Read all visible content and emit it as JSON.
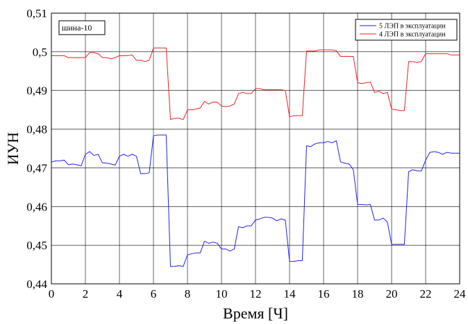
{
  "chart_data": {
    "type": "line",
    "xlabel": "Время [Ч]",
    "ylabel": "ИУН",
    "xlim": [
      0,
      24
    ],
    "ylim": [
      0.44,
      0.51
    ],
    "x_ticks": [
      "0",
      "2",
      "4",
      "6",
      "8",
      "10",
      "12",
      "14",
      "16",
      "18",
      "20",
      "22",
      "24"
    ],
    "y_ticks": [
      "0,44",
      "0,45",
      "0,46",
      "0,47",
      "0,48",
      "0,49",
      "0,5",
      "0,51"
    ],
    "grid": true,
    "legend_position": "top-right",
    "annotation": "шина-10",
    "series": [
      {
        "name": "5 ЛЭП в эксплуатации",
        "color": "#2020ee",
        "x": [
          0,
          0.25,
          0.5,
          0.75,
          1,
          1.25,
          1.5,
          1.75,
          2,
          2.25,
          2.5,
          2.75,
          3,
          3.25,
          3.5,
          3.75,
          4,
          4.25,
          4.5,
          4.75,
          5,
          5.25,
          5.5,
          5.75,
          6,
          6.25,
          6.5,
          6.75,
          7,
          7.25,
          7.5,
          7.75,
          8,
          8.25,
          8.5,
          8.75,
          9,
          9.25,
          9.5,
          9.75,
          10,
          10.25,
          10.5,
          10.75,
          11,
          11.25,
          11.5,
          11.75,
          12,
          12.25,
          12.5,
          12.75,
          13,
          13.25,
          13.5,
          13.75,
          14,
          14.25,
          14.5,
          14.75,
          15,
          15.25,
          15.5,
          15.75,
          16,
          16.25,
          16.5,
          16.75,
          17,
          17.25,
          17.5,
          17.75,
          18,
          18.25,
          18.5,
          18.75,
          19,
          19.25,
          19.5,
          19.75,
          20,
          20.25,
          20.5,
          20.75,
          21,
          21.25,
          21.5,
          21.75,
          22,
          22.25,
          22.5,
          22.75,
          23,
          23.25,
          23.5,
          23.75,
          24
        ],
        "values": [
          0.4715,
          0.4718,
          0.4718,
          0.472,
          0.4708,
          0.471,
          0.4708,
          0.4705,
          0.4735,
          0.4742,
          0.4732,
          0.4735,
          0.4713,
          0.4712,
          0.471,
          0.4707,
          0.473,
          0.4735,
          0.473,
          0.4735,
          0.473,
          0.4685,
          0.4685,
          0.4687,
          0.4783,
          0.4785,
          0.4785,
          0.4785,
          0.4445,
          0.4445,
          0.4447,
          0.4445,
          0.4475,
          0.4478,
          0.448,
          0.448,
          0.451,
          0.4505,
          0.4508,
          0.4505,
          0.449,
          0.449,
          0.4485,
          0.449,
          0.4548,
          0.4545,
          0.455,
          0.455,
          0.4565,
          0.4568,
          0.4572,
          0.4572,
          0.457,
          0.4563,
          0.4568,
          0.4565,
          0.4458,
          0.4458,
          0.446,
          0.446,
          0.4757,
          0.4755,
          0.4762,
          0.4765,
          0.4765,
          0.4768,
          0.4765,
          0.477,
          0.4715,
          0.4712,
          0.471,
          0.4695,
          0.4605,
          0.4605,
          0.4604,
          0.4605,
          0.4565,
          0.4565,
          0.457,
          0.456,
          0.4502,
          0.4502,
          0.4502,
          0.4502,
          0.469,
          0.4695,
          0.4692,
          0.4692,
          0.472,
          0.474,
          0.4742,
          0.474,
          0.4735,
          0.474,
          0.4738,
          0.4738,
          0.4738
        ]
      },
      {
        "name": "4 ЛЭП в эксплуатации",
        "color": "#ee2020",
        "x": [
          0,
          0.25,
          0.5,
          0.75,
          1,
          1.25,
          1.5,
          1.75,
          2,
          2.25,
          2.5,
          2.75,
          3,
          3.25,
          3.5,
          3.75,
          4,
          4.25,
          4.5,
          4.75,
          5,
          5.25,
          5.5,
          5.75,
          6,
          6.25,
          6.5,
          6.75,
          7,
          7.25,
          7.5,
          7.75,
          8,
          8.25,
          8.5,
          8.75,
          9,
          9.25,
          9.5,
          9.75,
          10,
          10.25,
          10.5,
          10.75,
          11,
          11.25,
          11.5,
          11.75,
          12,
          12.25,
          12.5,
          12.75,
          13,
          13.25,
          13.5,
          13.75,
          14,
          14.25,
          14.5,
          14.75,
          15,
          15.25,
          15.5,
          15.75,
          16,
          16.25,
          16.5,
          16.75,
          17,
          17.25,
          17.5,
          17.75,
          18,
          18.25,
          18.5,
          18.75,
          19,
          19.25,
          19.5,
          19.75,
          20,
          20.25,
          20.5,
          20.75,
          21,
          21.25,
          21.5,
          21.75,
          22,
          22.25,
          22.5,
          22.75,
          23,
          23.25,
          23.5,
          23.75,
          24
        ],
        "values": [
          0.499,
          0.499,
          0.499,
          0.499,
          0.4985,
          0.4985,
          0.4985,
          0.4985,
          0.4985,
          0.4998,
          0.4998,
          0.4995,
          0.4985,
          0.4985,
          0.4982,
          0.4985,
          0.499,
          0.499,
          0.499,
          0.4992,
          0.4978,
          0.4978,
          0.4975,
          0.4978,
          0.501,
          0.501,
          0.501,
          0.501,
          0.4825,
          0.4828,
          0.4828,
          0.4825,
          0.485,
          0.485,
          0.4852,
          0.4855,
          0.4872,
          0.4865,
          0.487,
          0.487,
          0.486,
          0.4858,
          0.486,
          0.4865,
          0.4892,
          0.4895,
          0.4892,
          0.4892,
          0.4905,
          0.4905,
          0.4902,
          0.4902,
          0.4902,
          0.4902,
          0.4902,
          0.49,
          0.4832,
          0.4835,
          0.4835,
          0.4835,
          0.5002,
          0.5002,
          0.5002,
          0.5005,
          0.5005,
          0.5005,
          0.5005,
          0.5003,
          0.4988,
          0.4988,
          0.4988,
          0.4988,
          0.492,
          0.4918,
          0.492,
          0.4922,
          0.4895,
          0.4898,
          0.4892,
          0.4895,
          0.4852,
          0.485,
          0.4848,
          0.4848,
          0.4975,
          0.4975,
          0.4972,
          0.4975,
          0.4995,
          0.4995,
          0.4995,
          0.4995,
          0.4995,
          0.4995,
          0.4992,
          0.4992,
          0.4992
        ]
      }
    ]
  }
}
